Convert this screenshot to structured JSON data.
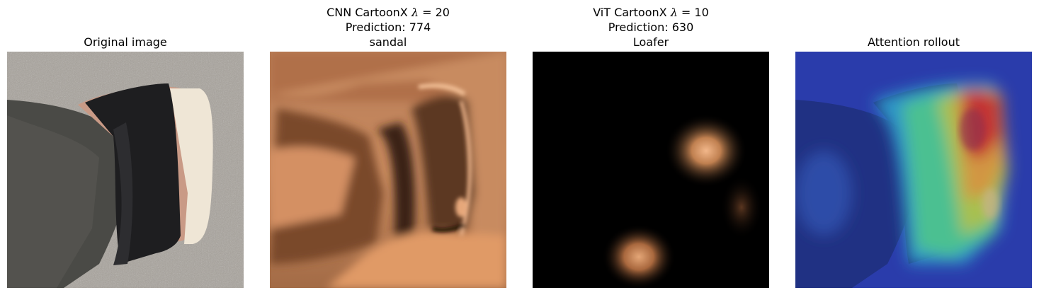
{
  "panels": [
    {
      "id": "original",
      "title_lines": [
        "Original image"
      ]
    },
    {
      "id": "cnn",
      "title_prefix": "CNN CartoonX ",
      "lambda_symbol": "λ",
      "lambda_value": " = 20",
      "title_lines": [
        "Prediction: 774",
        "sandal"
      ]
    },
    {
      "id": "vit",
      "title_prefix": "ViT CartoonX ",
      "lambda_symbol": "λ",
      "lambda_value": " = 10",
      "title_lines": [
        "Prediction: 630",
        "Loafer"
      ]
    },
    {
      "id": "rollout",
      "title_lines": [
        "Attention rollout"
      ]
    }
  ],
  "colors": {
    "carpet": "#a8a39c",
    "strap": "#1e1e20",
    "skin": "#c99a86",
    "copper": "#d9925f",
    "black": "#000000",
    "jet_blue": "#2a3aa8"
  }
}
